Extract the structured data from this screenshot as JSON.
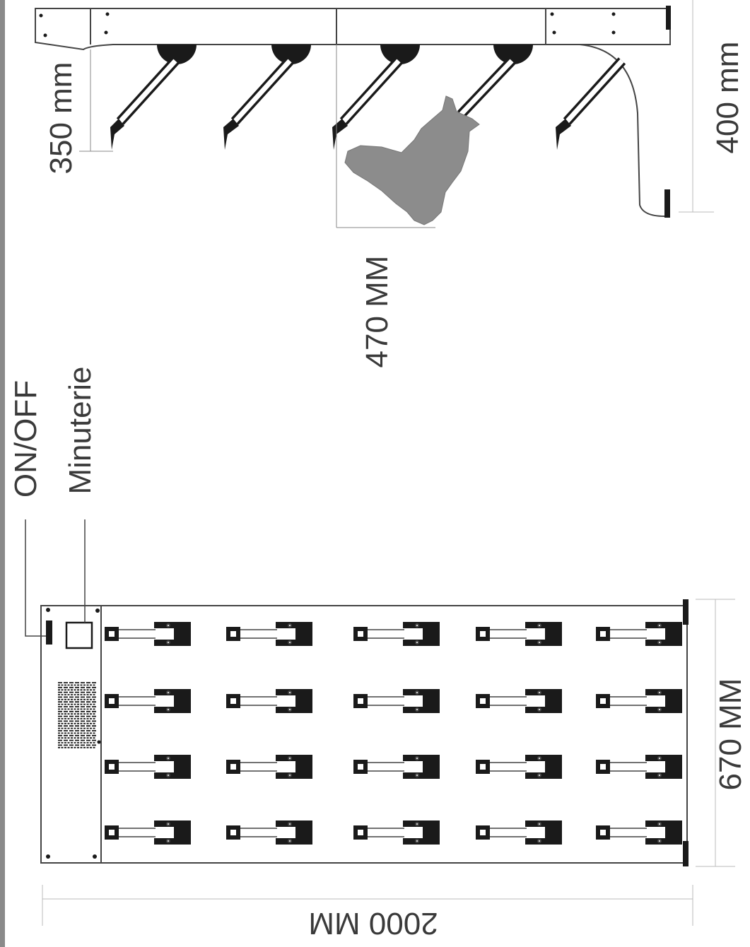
{
  "side_view": {
    "dim_depth_label": "350 mm",
    "dim_height_label": "400 mm",
    "dim_width_label": "470 MM"
  },
  "top_view": {
    "switch_label": "ON/OFF",
    "timer_label": "Minuterie",
    "dim_width_label": "670 MM",
    "dim_length_label": "2000 MM",
    "hook_rows": 5,
    "hook_columns": 4
  },
  "colors": {
    "line": "#444444",
    "fill_dark": "#1a1a1a",
    "garment": "#8c8c8c",
    "text": "#3a3a3a"
  }
}
